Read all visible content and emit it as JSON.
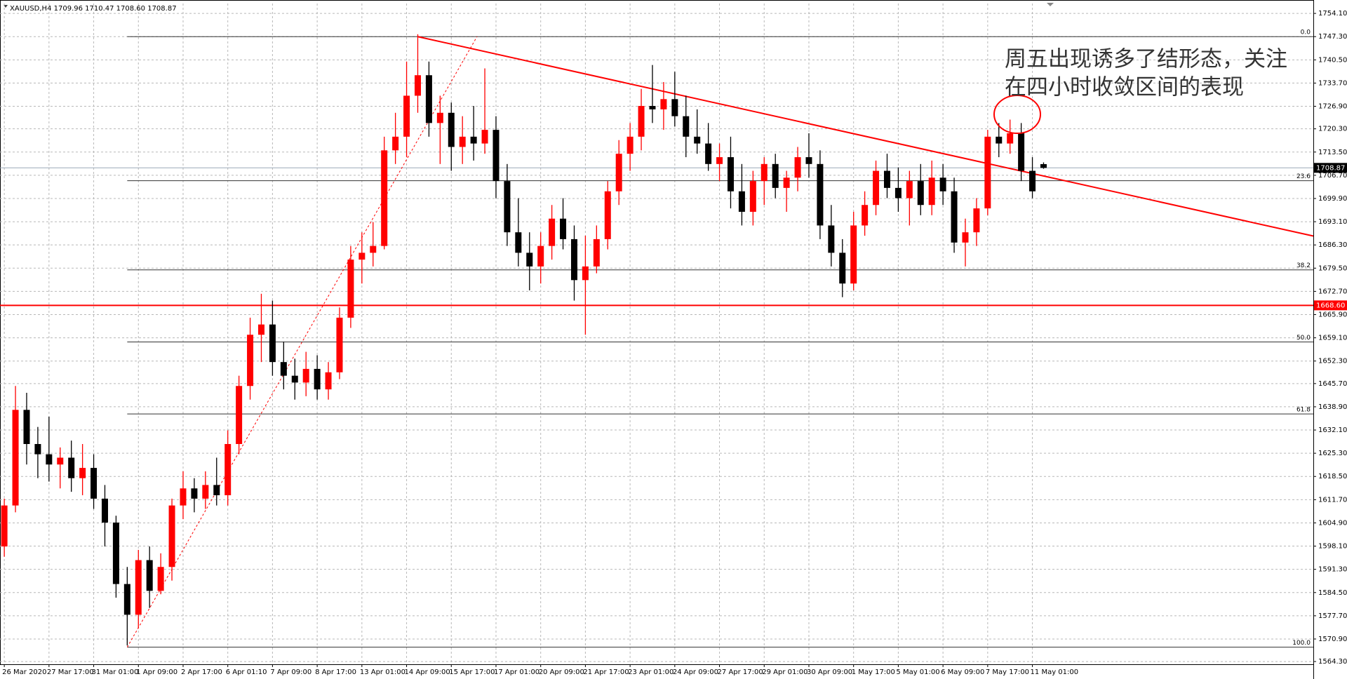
{
  "chart_data": {
    "type": "candlestick",
    "header": "XAUUSD,H4  1709.96 1710.47 1708.60 1708.87",
    "annotation": [
      "周五出现诱多了结形态，关注",
      "在四小时收敛区间的表现"
    ],
    "categories": [
      "26 Mar 2020",
      null,
      null,
      null,
      "27 Mar 17:00",
      null,
      null,
      null,
      "31 Mar 01:00",
      null,
      null,
      null,
      "1 Apr 09:00",
      null,
      null,
      null,
      "2 Apr 17:00",
      null,
      null,
      null,
      "6 Apr 01:10",
      null,
      null,
      null,
      "7 Apr 09:00",
      null,
      null,
      null,
      "8 Apr 17:00",
      null,
      null,
      null,
      "13 Apr 01:00",
      null,
      null,
      null,
      "14 Apr 09:00",
      null,
      null,
      null,
      "15 Apr 17:00",
      null,
      null,
      null,
      "17 Apr 01:00",
      null,
      null,
      null,
      "20 Apr 09:00",
      null,
      null,
      null,
      "21 Apr 17:00",
      null,
      null,
      null,
      "23 Apr 01:00",
      null,
      null,
      null,
      "24 Apr 09:00",
      null,
      null,
      null,
      "27 Apr 17:00",
      null,
      null,
      null,
      "29 Apr 01:00",
      null,
      null,
      null,
      "30 Apr 09:00",
      null,
      null,
      null,
      "1 May 17:00",
      null,
      null,
      null,
      "5 May 01:00",
      null,
      null,
      null,
      "6 May 09:00",
      null,
      null,
      null,
      "7 May 17:00",
      null,
      null,
      null,
      "11 May 01:00",
      null
    ],
    "ohlc": [
      [
        1598,
        1612,
        1595,
        1610
      ],
      [
        1610,
        1645,
        1608,
        1638
      ],
      [
        1638,
        1643,
        1622,
        1628
      ],
      [
        1628,
        1633,
        1618,
        1625
      ],
      [
        1625,
        1636,
        1617,
        1622
      ],
      [
        1622,
        1627,
        1615,
        1624
      ],
      [
        1624,
        1629,
        1614,
        1618
      ],
      [
        1618,
        1628,
        1613,
        1621
      ],
      [
        1621,
        1625,
        1609,
        1612
      ],
      [
        1612,
        1616,
        1598,
        1605
      ],
      [
        1605,
        1607,
        1583,
        1587
      ],
      [
        1587,
        1592,
        1569,
        1578
      ],
      [
        1578,
        1597,
        1574,
        1594
      ],
      [
        1594,
        1598,
        1580,
        1585
      ],
      [
        1585,
        1596,
        1584,
        1592
      ],
      [
        1592,
        1612,
        1588,
        1610
      ],
      [
        1610,
        1620,
        1606,
        1615
      ],
      [
        1615,
        1618,
        1608,
        1612
      ],
      [
        1612,
        1620,
        1609,
        1616
      ],
      [
        1616,
        1624,
        1610,
        1613
      ],
      [
        1613,
        1632,
        1610,
        1628
      ],
      [
        1628,
        1648,
        1625,
        1645
      ],
      [
        1645,
        1665,
        1641,
        1660
      ],
      [
        1660,
        1672,
        1652,
        1663
      ],
      [
        1663,
        1670,
        1648,
        1652
      ],
      [
        1652,
        1658,
        1644,
        1648
      ],
      [
        1648,
        1653,
        1641,
        1646
      ],
      [
        1646,
        1655,
        1642,
        1650
      ],
      [
        1650,
        1654,
        1641,
        1644
      ],
      [
        1644,
        1652,
        1641,
        1649
      ],
      [
        1649,
        1668,
        1647,
        1665
      ],
      [
        1665,
        1686,
        1662,
        1682
      ],
      [
        1682,
        1690,
        1675,
        1684
      ],
      [
        1684,
        1693,
        1680,
        1686
      ],
      [
        1686,
        1718,
        1685,
        1714
      ],
      [
        1714,
        1725,
        1710,
        1718
      ],
      [
        1718,
        1740,
        1712,
        1730
      ],
      [
        1730,
        1748,
        1725,
        1736
      ],
      [
        1736,
        1740,
        1718,
        1722
      ],
      [
        1722,
        1730,
        1710,
        1725
      ],
      [
        1725,
        1728,
        1708,
        1715
      ],
      [
        1715,
        1724,
        1710,
        1718
      ],
      [
        1718,
        1727,
        1711,
        1716
      ],
      [
        1716,
        1738,
        1713,
        1720
      ],
      [
        1720,
        1724,
        1700,
        1705
      ],
      [
        1705,
        1710,
        1686,
        1690
      ],
      [
        1690,
        1700,
        1680,
        1684
      ],
      [
        1684,
        1690,
        1673,
        1680
      ],
      [
        1680,
        1690,
        1675,
        1686
      ],
      [
        1686,
        1698,
        1682,
        1694
      ],
      [
        1694,
        1700,
        1685,
        1688
      ],
      [
        1688,
        1692,
        1670,
        1676
      ],
      [
        1676,
        1689,
        1660,
        1680
      ],
      [
        1680,
        1692,
        1678,
        1688
      ],
      [
        1688,
        1705,
        1685,
        1702
      ],
      [
        1702,
        1717,
        1698,
        1713
      ],
      [
        1713,
        1722,
        1708,
        1718
      ],
      [
        1718,
        1732,
        1714,
        1727
      ],
      [
        1727,
        1739,
        1722,
        1726
      ],
      [
        1726,
        1734,
        1720,
        1729
      ],
      [
        1729,
        1737,
        1721,
        1724
      ],
      [
        1724,
        1730,
        1712,
        1718
      ],
      [
        1718,
        1726,
        1713,
        1716
      ],
      [
        1716,
        1722,
        1708,
        1710
      ],
      [
        1710,
        1716,
        1705,
        1712
      ],
      [
        1712,
        1718,
        1697,
        1702
      ],
      [
        1702,
        1710,
        1692,
        1696
      ],
      [
        1696,
        1708,
        1692,
        1705
      ],
      [
        1705,
        1712,
        1698,
        1710
      ],
      [
        1710,
        1713,
        1700,
        1703
      ],
      [
        1703,
        1708,
        1696,
        1706
      ],
      [
        1706,
        1715,
        1702,
        1712
      ],
      [
        1712,
        1719,
        1706,
        1710
      ],
      [
        1710,
        1714,
        1688,
        1692
      ],
      [
        1692,
        1698,
        1680,
        1684
      ],
      [
        1684,
        1688,
        1671,
        1675
      ],
      [
        1675,
        1696,
        1673,
        1692
      ],
      [
        1692,
        1702,
        1689,
        1698
      ],
      [
        1698,
        1711,
        1695,
        1708
      ],
      [
        1708,
        1713,
        1700,
        1703
      ],
      [
        1703,
        1709,
        1696,
        1700
      ],
      [
        1700,
        1708,
        1692,
        1705
      ],
      [
        1705,
        1710,
        1695,
        1698
      ],
      [
        1698,
        1711,
        1695,
        1706
      ],
      [
        1706,
        1710,
        1698,
        1702
      ],
      [
        1702,
        1706,
        1684,
        1687
      ],
      [
        1687,
        1694,
        1680,
        1690
      ],
      [
        1690,
        1700,
        1686,
        1697
      ],
      [
        1697,
        1720,
        1695,
        1718
      ],
      [
        1718,
        1722,
        1712,
        1716
      ],
      [
        1716,
        1723,
        1713,
        1719
      ],
      [
        1719,
        1722,
        1705,
        1708
      ],
      [
        1708,
        1712,
        1700,
        1702
      ],
      [
        1709.96,
        1710.47,
        1708.6,
        1708.87
      ]
    ],
    "up_color": "#ff0000",
    "down_color": "#000000",
    "ylim": [
      1563.5,
      1757
    ],
    "yticks": [
      {
        "value": 1564.3,
        "label": "1564.30"
      },
      {
        "value": 1570.9,
        "label": "1570.90"
      },
      {
        "value": 1577.7,
        "label": "1577.70"
      },
      {
        "value": 1584.5,
        "label": "1584.50"
      },
      {
        "value": 1591.3,
        "label": "1591.30"
      },
      {
        "value": 1598.1,
        "label": "1598.10"
      },
      {
        "value": 1604.9,
        "label": "1604.90"
      },
      {
        "value": 1611.7,
        "label": "1611.70"
      },
      {
        "value": 1618.5,
        "label": "1618.50"
      },
      {
        "value": 1625.3,
        "label": "1625.30"
      },
      {
        "value": 1632.1,
        "label": "1632.10"
      },
      {
        "value": 1638.9,
        "label": "1638.90"
      },
      {
        "value": 1645.7,
        "label": "1645.70"
      },
      {
        "value": 1652.3,
        "label": "1652.30"
      },
      {
        "value": 1659.1,
        "label": "1659.10"
      },
      {
        "value": 1665.9,
        "label": "1665.90"
      },
      {
        "value": 1672.7,
        "label": "1672.70"
      },
      {
        "value": 1679.5,
        "label": "1679.50"
      },
      {
        "value": 1686.3,
        "label": "1686.30"
      },
      {
        "value": 1693.1,
        "label": "1693.10"
      },
      {
        "value": 1699.9,
        "label": "1699.90"
      },
      {
        "value": 1706.7,
        "label": "1706.70"
      },
      {
        "value": 1713.5,
        "label": "1713.50"
      },
      {
        "value": 1720.3,
        "label": "1720.30"
      },
      {
        "value": 1726.9,
        "label": "1726.90"
      },
      {
        "value": 1733.7,
        "label": "1733.70"
      },
      {
        "value": 1740.5,
        "label": "1740.50"
      },
      {
        "value": 1747.3,
        "label": "1747.30"
      },
      {
        "value": 1754.1,
        "label": "1754.10"
      }
    ],
    "grid": true,
    "current_price": 1708.87,
    "support_line": {
      "value": 1668.6,
      "label": "1668.60",
      "color": "#ff0000"
    },
    "fib_x": 11,
    "fib_levels": [
      {
        "label": "0.0",
        "price": 1747.3
      },
      {
        "label": "23.6",
        "price": 1705.1
      },
      {
        "label": "38.2",
        "price": 1679.0
      },
      {
        "label": "50.0",
        "price": 1657.9
      },
      {
        "label": "61.8",
        "price": 1636.8
      },
      {
        "label": "100.0",
        "price": 1568.5
      }
    ],
    "trendline": {
      "x": [
        37,
        117.2
      ],
      "y": [
        1747.3,
        1688.9
      ],
      "color": "#ff0000"
    },
    "fib_trendline": {
      "x": [
        11,
        42.3
      ],
      "y": [
        1568.5,
        1747.3
      ],
      "color": "#ff0000"
    }
  }
}
